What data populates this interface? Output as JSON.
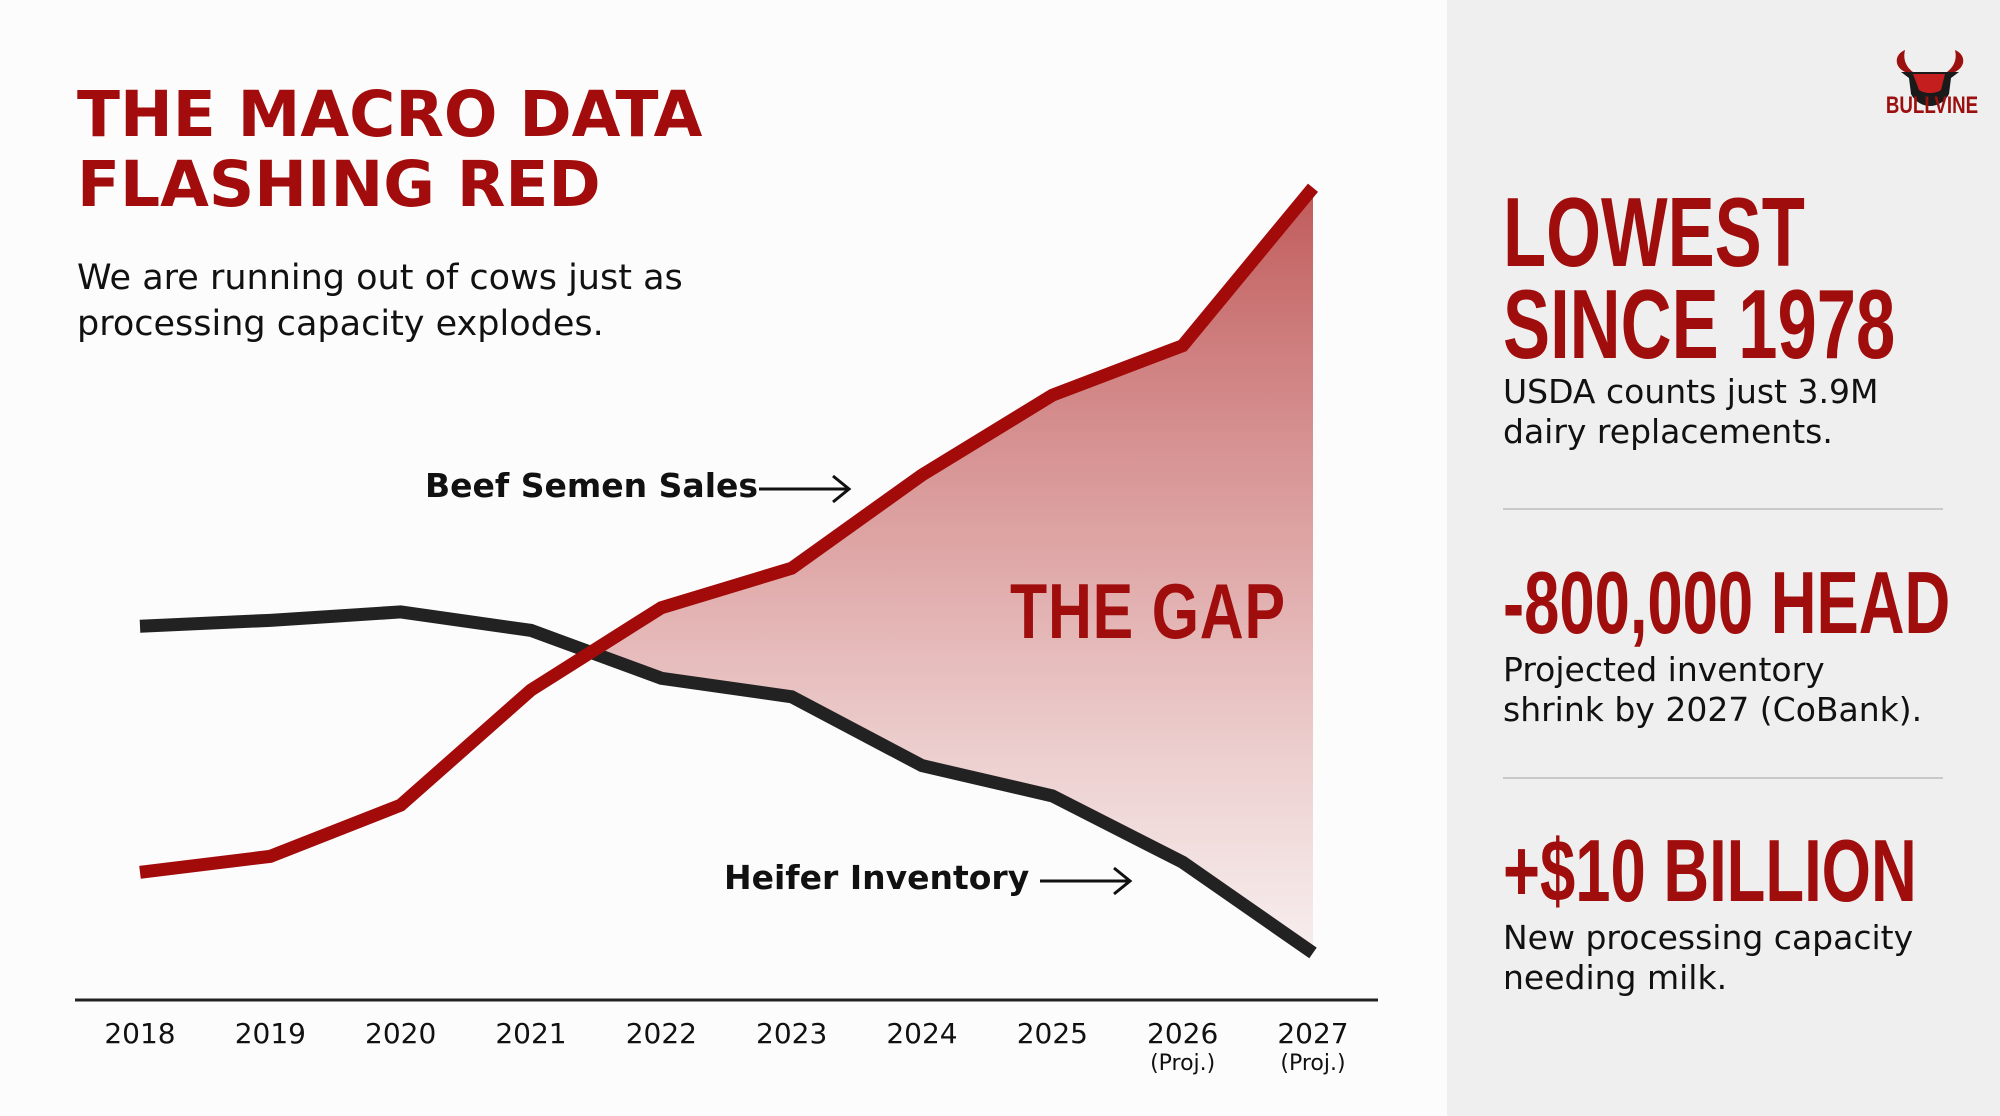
{
  "header": {
    "title_lines": [
      "THE MACRO DATA",
      "FLASHING RED"
    ],
    "subtitle_lines": [
      "We are running out of cows just as",
      "processing capacity explodes."
    ]
  },
  "brand": {
    "name": "BULLVINE",
    "icon": "bull-head-icon"
  },
  "colors": {
    "accent": "#a00d0d",
    "beef_line": "#a30a0a",
    "heifer_line": "#222222",
    "gap_fill": "#c45a5a"
  },
  "chart_data": {
    "type": "line",
    "title": "THE MACRO DATA FLASHING RED",
    "xlabel": "",
    "ylabel": "",
    "categories": [
      "2018",
      "2019",
      "2020",
      "2021",
      "2022",
      "2023",
      "2024",
      "2025",
      "2026",
      "2027"
    ],
    "category_sublabels": [
      "",
      "",
      "",
      "",
      "",
      "",
      "",
      "",
      "(Proj.)",
      "(Proj.)"
    ],
    "ylim": [
      0,
      100
    ],
    "grid": false,
    "y_axis_shown": false,
    "series": [
      {
        "name": "Beef Semen Sales",
        "values": [
          15.2,
          17.1,
          23.2,
          36.9,
          46.7,
          51.4,
          62.5,
          72.0,
          77.9,
          96.7
        ]
      },
      {
        "name": "Heifer Inventory",
        "values": [
          44.5,
          45.2,
          46.2,
          44.0,
          38.3,
          36.1,
          27.9,
          24.3,
          16.4,
          5.6
        ]
      }
    ],
    "annotations": [
      {
        "text": "THE GAP",
        "type": "shaded-region-between-series"
      }
    ]
  },
  "stats": [
    {
      "value": "LOWEST",
      "value_line2": "SINCE 1978",
      "desc_lines": [
        "USDA counts just 3.9M",
        "dairy replacements."
      ]
    },
    {
      "value": "-800,000 HEAD",
      "desc_lines": [
        "Projected inventory",
        "shrink by 2027 (CoBank)."
      ]
    },
    {
      "value": "+$10 BILLION",
      "desc_lines": [
        "New processing capacity",
        "needing milk."
      ]
    }
  ]
}
